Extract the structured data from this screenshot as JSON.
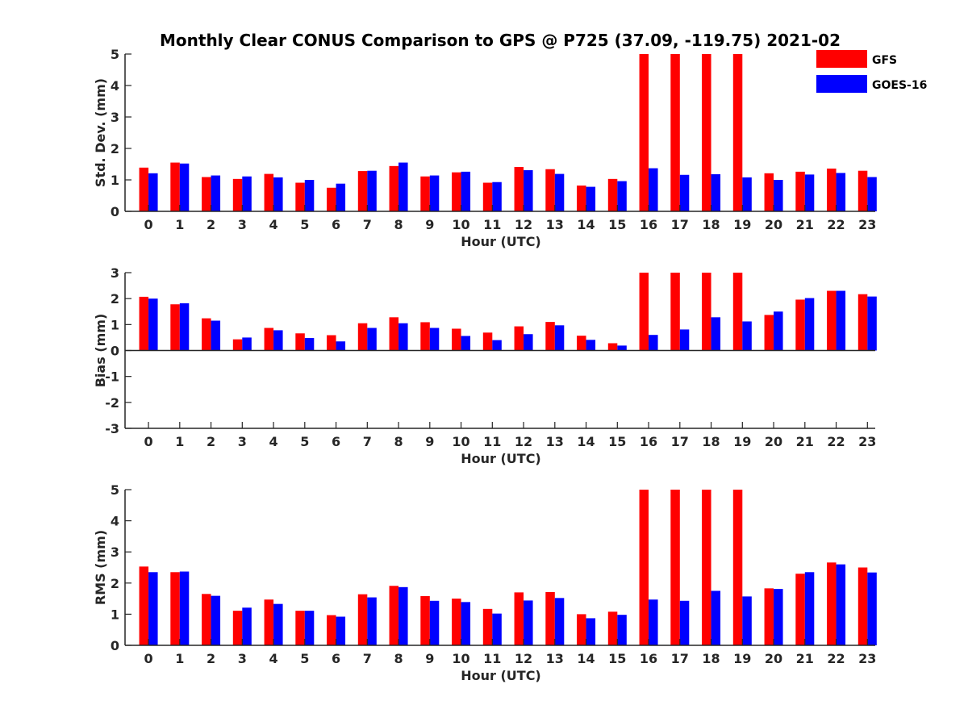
{
  "chart_data": {
    "type": "bar",
    "title": "Monthly Clear CONUS Comparison to GPS @ P725 (37.09, -119.75) 2021-02",
    "legend": {
      "placement": "top-right",
      "entries": [
        {
          "name": "GFS",
          "color": "#ff0000"
        },
        {
          "name": "GOES-16",
          "color": "#0000ff"
        }
      ]
    },
    "categories": [
      "0",
      "1",
      "2",
      "3",
      "4",
      "5",
      "6",
      "7",
      "8",
      "9",
      "10",
      "11",
      "12",
      "13",
      "14",
      "15",
      "16",
      "17",
      "18",
      "19",
      "20",
      "21",
      "22",
      "23"
    ],
    "panels": [
      {
        "ylabel": "Std. Dev. (mm)",
        "xlabel": "Hour (UTC)",
        "ylim": [
          0,
          5
        ],
        "yticks": [
          0,
          1,
          2,
          3,
          4,
          5
        ],
        "series": [
          {
            "name": "GFS",
            "color": "#ff0000",
            "values": [
              1.39,
              1.55,
              1.09,
              1.03,
              1.19,
              0.91,
              0.75,
              1.28,
              1.44,
              1.11,
              1.24,
              0.91,
              1.41,
              1.34,
              0.82,
              1.03,
              5,
              5,
              5,
              5,
              1.21,
              1.26,
              1.36,
              1.29
            ]
          },
          {
            "name": "GOES-16",
            "color": "#0000ff",
            "values": [
              1.21,
              1.52,
              1.14,
              1.11,
              1.08,
              1.0,
              0.88,
              1.29,
              1.55,
              1.14,
              1.26,
              0.93,
              1.31,
              1.19,
              0.78,
              0.96,
              1.37,
              1.16,
              1.18,
              1.08,
              1.0,
              1.17,
              1.22,
              1.09
            ]
          }
        ]
      },
      {
        "ylabel": "Bias (mm)",
        "xlabel": "Hour (UTC)",
        "ylim": [
          -3,
          3
        ],
        "yticks": [
          -3,
          -2,
          -1,
          0,
          1,
          2,
          3
        ],
        "series": [
          {
            "name": "GFS",
            "color": "#ff0000",
            "values": [
              2.07,
              1.78,
              1.24,
              0.43,
              0.87,
              0.66,
              0.59,
              1.05,
              1.28,
              1.09,
              0.84,
              0.69,
              0.93,
              1.1,
              0.57,
              0.28,
              3,
              3,
              3,
              3,
              1.37,
              1.96,
              2.3,
              2.17
            ]
          },
          {
            "name": "GOES-16",
            "color": "#0000ff",
            "values": [
              2.0,
              1.82,
              1.15,
              0.5,
              0.78,
              0.48,
              0.35,
              0.87,
              1.05,
              0.87,
              0.56,
              0.4,
              0.63,
              0.97,
              0.41,
              0.19,
              0.6,
              0.81,
              1.28,
              1.12,
              1.5,
              2.02,
              2.3,
              2.08
            ]
          }
        ]
      },
      {
        "ylabel": "RMS (mm)",
        "xlabel": "Hour (UTC)",
        "ylim": [
          0,
          5
        ],
        "yticks": [
          0,
          1,
          2,
          3,
          4,
          5
        ],
        "series": [
          {
            "name": "GFS",
            "color": "#ff0000",
            "values": [
              2.53,
              2.35,
              1.65,
              1.11,
              1.47,
              1.11,
              0.97,
              1.64,
              1.91,
              1.58,
              1.5,
              1.17,
              1.7,
              1.71,
              1.0,
              1.08,
              5,
              5,
              5,
              5,
              1.83,
              2.3,
              2.66,
              2.5
            ]
          },
          {
            "name": "GOES-16",
            "color": "#0000ff",
            "values": [
              2.35,
              2.37,
              1.59,
              1.21,
              1.33,
              1.11,
              0.92,
              1.54,
              1.87,
              1.43,
              1.39,
              1.02,
              1.44,
              1.52,
              0.87,
              0.98,
              1.47,
              1.43,
              1.75,
              1.57,
              1.81,
              2.35,
              2.6,
              2.34
            ]
          }
        ]
      }
    ]
  }
}
